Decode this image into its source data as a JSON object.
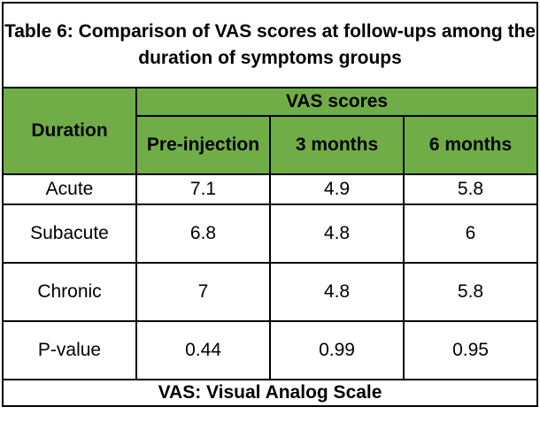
{
  "table": {
    "title": "Table 6: Comparison of VAS scores at follow-ups among the duration of symptoms groups",
    "group_header": "VAS scores",
    "row_header": "Duration",
    "columns": [
      "Pre-injection",
      "3 months",
      "6 months"
    ],
    "rows": [
      {
        "label": "Acute",
        "values": [
          "7.1",
          "4.9",
          "5.8"
        ]
      },
      {
        "label": "Subacute",
        "values": [
          "6.8",
          "4.8",
          "6"
        ]
      },
      {
        "label": "Chronic",
        "values": [
          "7",
          "4.8",
          "5.8"
        ]
      },
      {
        "label": "P-value",
        "values": [
          "0.44",
          "0.99",
          "0.95"
        ]
      }
    ],
    "footnote": "VAS: Visual Analog Scale",
    "colors": {
      "header_fill": "#70ad47",
      "border": "#000000"
    }
  }
}
